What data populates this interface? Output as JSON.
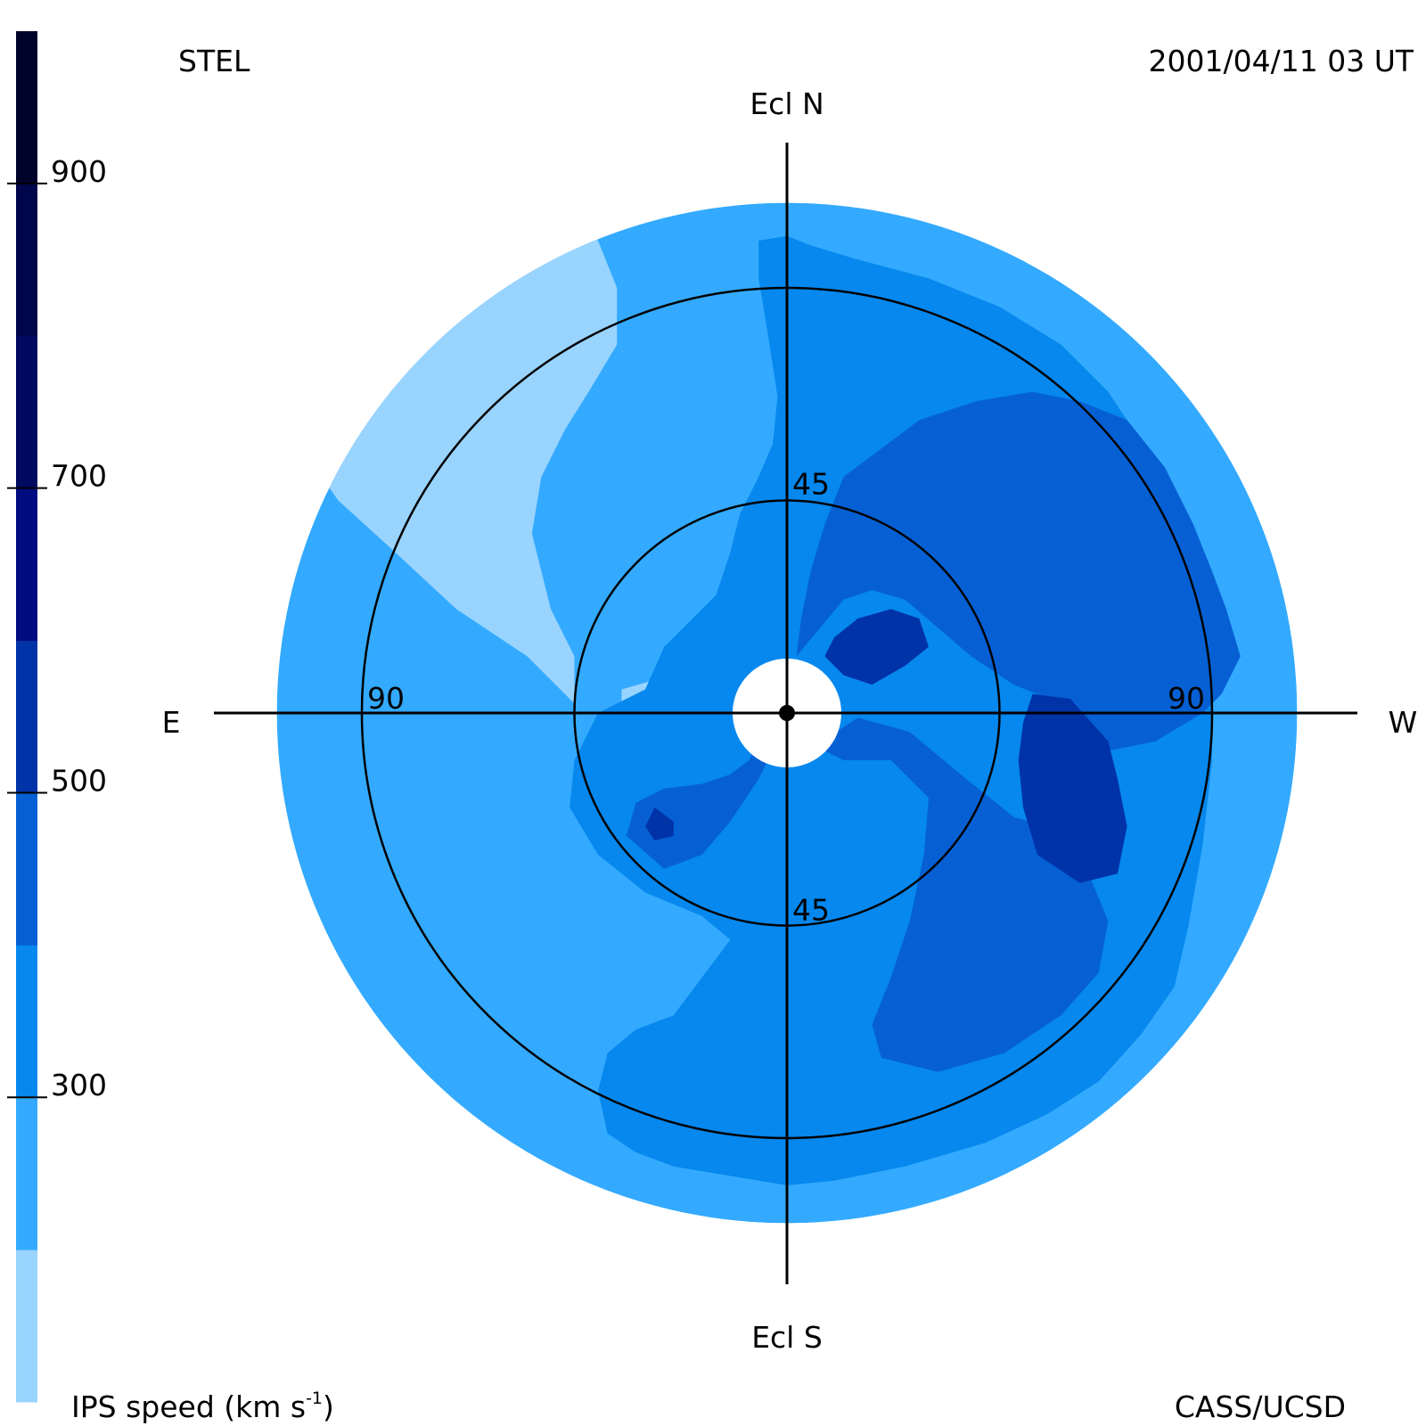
{
  "header": {
    "observatory": "STEL",
    "timestamp": "2001/04/11 03 UT"
  },
  "footer": {
    "colorbar_title_main": "IPS speed (km s",
    "colorbar_title_sup": "-1",
    "colorbar_title_end": ")",
    "credit": "CASS/UCSD"
  },
  "chart_data": {
    "type": "heatmap",
    "projection": "polar sky map centred on the Sun",
    "directions": {
      "north": "Ecl N",
      "south": "Ecl S",
      "east": "E",
      "west": "W"
    },
    "rings": [
      {
        "elongation": 45,
        "label": "45"
      },
      {
        "elongation": 90,
        "label": "90"
      }
    ],
    "map_extent_elongation": 108,
    "colorbar": {
      "ticks": [
        300,
        500,
        700,
        900
      ],
      "range": [
        100,
        1000
      ],
      "bands": [
        {
          "from": 100,
          "to": 200,
          "color": "#99d4ff"
        },
        {
          "from": 200,
          "to": 300,
          "color": "#33aaff"
        },
        {
          "from": 300,
          "to": 400,
          "color": "#0688ee"
        },
        {
          "from": 400,
          "to": 500,
          "color": "#0660d4"
        },
        {
          "from": 500,
          "to": 600,
          "color": "#0033a8"
        },
        {
          "from": 600,
          "to": 700,
          "color": "#000c80"
        },
        {
          "from": 700,
          "to": 800,
          "color": "#000a60"
        },
        {
          "from": 800,
          "to": 900,
          "color": "#00064a"
        },
        {
          "from": 900,
          "to": 1000,
          "color": "#000329"
        }
      ]
    },
    "background_speed": 250,
    "speed_regions": [
      {
        "speed": 150,
        "points": [
          [
            -45,
            2
          ],
          [
            -55,
            12
          ],
          [
            -70,
            22
          ],
          [
            -84,
            35
          ],
          [
            -95,
            45
          ],
          [
            -102,
            55
          ],
          [
            -105,
            62
          ],
          [
            -104,
            74
          ],
          [
            -96,
            84
          ],
          [
            -82,
            93
          ],
          [
            -66,
            100
          ],
          [
            -54,
            104
          ],
          [
            -46,
            106
          ],
          [
            -40,
            100
          ],
          [
            -36,
            90
          ],
          [
            -36,
            78
          ],
          [
            -42,
            68
          ],
          [
            -47,
            60
          ],
          [
            -52,
            50
          ],
          [
            -54,
            38
          ],
          [
            -50,
            22
          ],
          [
            -45,
            12
          ]
        ]
      },
      {
        "speed": 150,
        "points": [
          [
            -35,
            -3
          ],
          [
            -35,
            5
          ],
          [
            -28,
            7
          ],
          [
            -16,
            9
          ],
          [
            -12,
            10
          ],
          [
            -10,
            5
          ],
          [
            -16,
            1
          ],
          [
            -24,
            -1
          ]
        ]
      },
      {
        "speed": 350,
        "points": [
          [
            0,
            101
          ],
          [
            0,
            -100
          ],
          [
            -12,
            -98
          ],
          [
            -24,
            -96
          ],
          [
            -32,
            -93
          ],
          [
            -38,
            -89
          ],
          [
            -40,
            -80
          ],
          [
            -38,
            -72
          ],
          [
            -32,
            -67
          ],
          [
            -24,
            -64
          ],
          [
            -18,
            -56
          ],
          [
            -12,
            -48
          ],
          [
            -18,
            -43
          ],
          [
            -30,
            -38
          ],
          [
            -40,
            -30
          ],
          [
            -46,
            -20
          ],
          [
            -45,
            -10
          ],
          [
            -40,
            0
          ],
          [
            -30,
            5
          ],
          [
            -26,
            14
          ],
          [
            -20,
            20
          ],
          [
            -15,
            25
          ],
          [
            -12,
            34
          ],
          [
            -10,
            42
          ],
          [
            -6,
            50
          ],
          [
            -3,
            57
          ],
          [
            -2,
            67
          ],
          [
            -4,
            80
          ],
          [
            -6,
            92
          ],
          [
            -6,
            100
          ]
        ]
      },
      {
        "speed": 350,
        "points": [
          [
            0,
            101
          ],
          [
            5,
            99
          ],
          [
            15,
            96
          ],
          [
            30,
            92
          ],
          [
            45,
            86
          ],
          [
            58,
            78
          ],
          [
            68,
            68
          ],
          [
            76,
            56
          ],
          [
            82,
            42
          ],
          [
            87,
            25
          ],
          [
            90,
            8
          ],
          [
            90,
            -10
          ],
          [
            88,
            -28
          ],
          [
            85,
            -45
          ],
          [
            82,
            -58
          ],
          [
            75,
            -68
          ],
          [
            66,
            -78
          ],
          [
            55,
            -85
          ],
          [
            42,
            -91
          ],
          [
            25,
            -96
          ],
          [
            10,
            -99
          ],
          [
            0,
            -100
          ]
        ]
      },
      {
        "speed": 450,
        "points": [
          [
            2,
            12
          ],
          [
            7,
            18
          ],
          [
            12,
            24
          ],
          [
            18,
            26
          ],
          [
            25,
            24
          ],
          [
            32,
            18
          ],
          [
            39,
            12
          ],
          [
            48,
            6
          ],
          [
            58,
            2
          ],
          [
            68,
            -8
          ],
          [
            78,
            -6
          ],
          [
            88,
            0
          ],
          [
            92,
            4
          ],
          [
            96,
            12
          ],
          [
            93,
            22
          ],
          [
            90,
            30
          ],
          [
            86,
            40
          ],
          [
            80,
            52
          ],
          [
            72,
            62
          ],
          [
            62,
            66
          ],
          [
            52,
            68
          ],
          [
            40,
            66
          ],
          [
            28,
            62
          ],
          [
            20,
            56
          ],
          [
            12,
            50
          ],
          [
            8,
            40
          ],
          [
            5,
            30
          ],
          [
            3,
            20
          ]
        ]
      },
      {
        "speed": 450,
        "points": [
          [
            6,
            -7
          ],
          [
            12,
            -10
          ],
          [
            22,
            -10
          ],
          [
            30,
            -18
          ],
          [
            29,
            -30
          ],
          [
            26,
            -44
          ],
          [
            22,
            -56
          ],
          [
            18,
            -66
          ],
          [
            20,
            -73
          ],
          [
            32,
            -76
          ],
          [
            46,
            -72
          ],
          [
            58,
            -64
          ],
          [
            66,
            -55
          ],
          [
            68,
            -44
          ],
          [
            63,
            -32
          ],
          [
            58,
            -25
          ],
          [
            48,
            -22
          ],
          [
            38,
            -14
          ],
          [
            26,
            -4
          ],
          [
            15,
            -1
          ]
        ]
      },
      {
        "speed": 450,
        "points": [
          [
            -5,
            -3
          ],
          [
            -8,
            -10
          ],
          [
            -12,
            -13
          ],
          [
            -18,
            -15
          ],
          [
            -26,
            -16
          ],
          [
            -32,
            -19
          ],
          [
            -34,
            -26
          ],
          [
            -26,
            -33
          ],
          [
            -18,
            -30
          ],
          [
            -12,
            -23
          ],
          [
            -6,
            -14
          ],
          [
            -3,
            -8
          ]
        ]
      },
      {
        "speed": 550,
        "points": [
          [
            8,
            12
          ],
          [
            12,
            8
          ],
          [
            18,
            6
          ],
          [
            25,
            10
          ],
          [
            30,
            14
          ],
          [
            28,
            20
          ],
          [
            22,
            22
          ],
          [
            15,
            20
          ],
          [
            10,
            16
          ]
        ]
      },
      {
        "speed": 550,
        "points": [
          [
            52,
            4
          ],
          [
            60,
            3
          ],
          [
            68,
            -6
          ],
          [
            70,
            -14
          ],
          [
            72,
            -24
          ],
          [
            70,
            -34
          ],
          [
            62,
            -36
          ],
          [
            53,
            -30
          ],
          [
            50,
            -20
          ],
          [
            49,
            -10
          ],
          [
            50,
            -2
          ]
        ]
      },
      {
        "speed": 550,
        "points": [
          [
            -28,
            -20
          ],
          [
            -24,
            -23
          ],
          [
            -24,
            -26
          ],
          [
            -28,
            -27
          ],
          [
            -30,
            -24
          ]
        ]
      }
    ]
  }
}
